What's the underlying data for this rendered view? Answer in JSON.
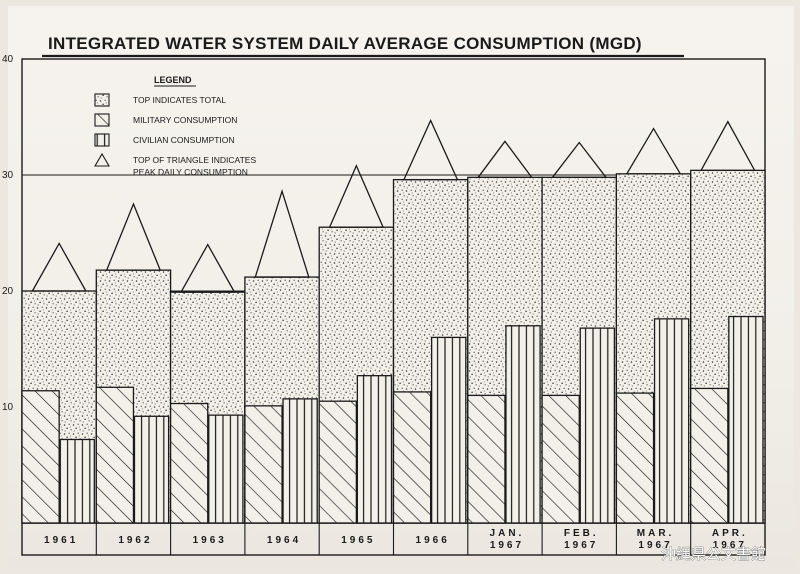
{
  "chart_data": {
    "type": "bar",
    "title": "INTEGRATED WATER SYSTEM DAILY AVERAGE CONSUMPTION (MGD)",
    "xlabel": "",
    "ylabel": "",
    "ylim": [
      0,
      40
    ],
    "y_ticks": [
      "10",
      "20",
      "30",
      "40"
    ],
    "grid": true,
    "legend_position": "top-left",
    "legend": {
      "title": "LEGEND",
      "entries": [
        {
          "key": "total",
          "lines": [
            "TOP INDICATES TOTAL"
          ]
        },
        {
          "key": "military",
          "lines": [
            "MILITARY CONSUMPTION"
          ]
        },
        {
          "key": "civilian",
          "lines": [
            "CIVILIAN CONSUMPTION"
          ]
        },
        {
          "key": "peak",
          "lines": [
            "TOP OF TRIANGLE INDICATES",
            "PEAK DAILY CONSUMPTION"
          ]
        }
      ]
    },
    "categories": [
      {
        "lines": [
          "1961"
        ]
      },
      {
        "lines": [
          "1962"
        ]
      },
      {
        "lines": [
          "1963"
        ]
      },
      {
        "lines": [
          "1964"
        ]
      },
      {
        "lines": [
          "1965"
        ]
      },
      {
        "lines": [
          "1966"
        ]
      },
      {
        "lines": [
          "JAN.",
          "1967"
        ]
      },
      {
        "lines": [
          "FEB.",
          "1967"
        ]
      },
      {
        "lines": [
          "MAR.",
          "1967"
        ]
      },
      {
        "lines": [
          "APR.",
          "1967"
        ]
      }
    ],
    "series": [
      {
        "name": "TOP INDICATES TOTAL",
        "values": [
          20.0,
          21.8,
          19.9,
          21.2,
          25.5,
          29.6,
          29.8,
          29.8,
          30.1,
          30.4
        ]
      },
      {
        "name": "MILITARY CONSUMPTION",
        "values": [
          11.4,
          11.7,
          10.3,
          10.1,
          10.5,
          11.3,
          11.0,
          11.0,
          11.2,
          11.6
        ]
      },
      {
        "name": "CIVILIAN CONSUMPTION",
        "values": [
          7.2,
          9.2,
          9.3,
          10.7,
          12.7,
          16.0,
          17.0,
          16.8,
          17.6,
          17.8
        ]
      },
      {
        "name": "TOP OF TRIANGLE INDICATES PEAK DAILY CONSUMPTION",
        "values": [
          24.1,
          27.5,
          24.0,
          28.6,
          30.8,
          34.7,
          32.9,
          32.8,
          34.0,
          34.6
        ]
      }
    ],
    "colors": {
      "ink": "#1a1a1a",
      "paper": "#f3f0ea"
    }
  },
  "watermark": {
    "text": "沖縄県公文書館"
  }
}
